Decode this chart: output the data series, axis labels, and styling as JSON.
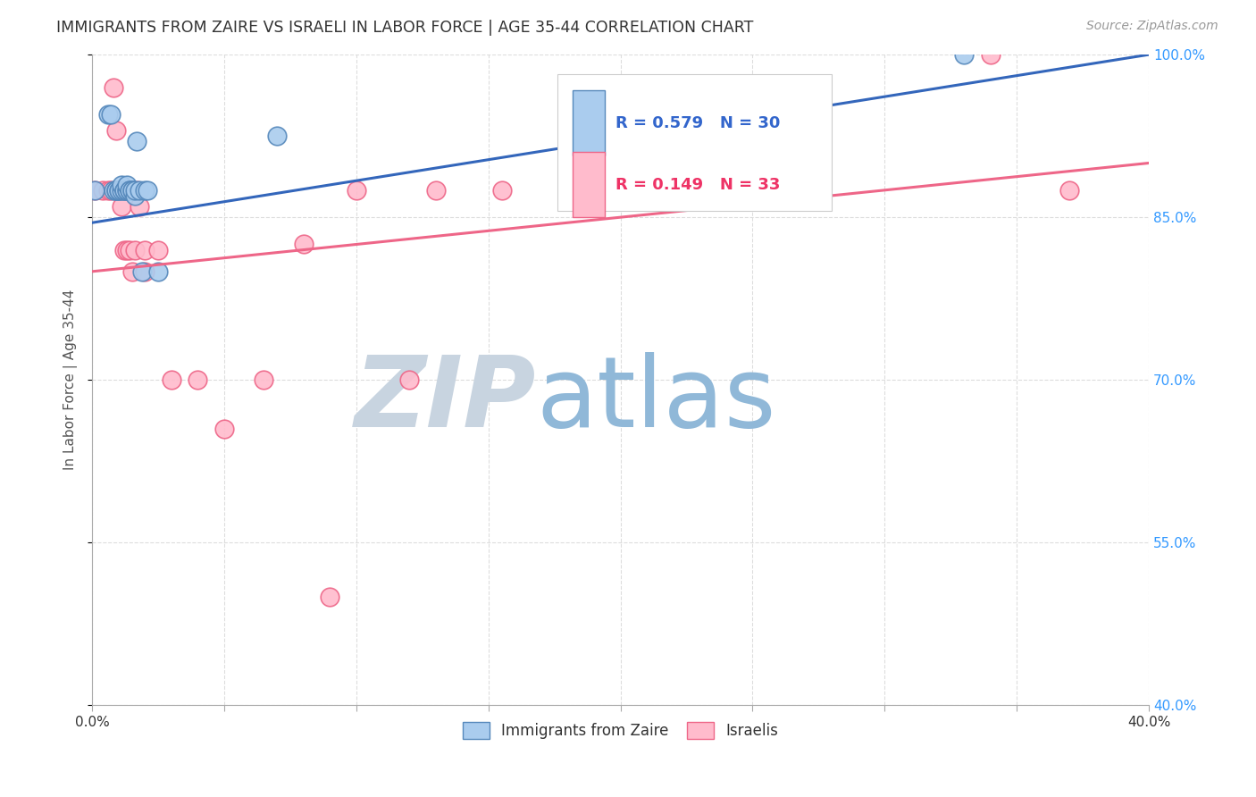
{
  "title": "IMMIGRANTS FROM ZAIRE VS ISRAELI IN LABOR FORCE | AGE 35-44 CORRELATION CHART",
  "source": "Source: ZipAtlas.com",
  "ylabel": "In Labor Force | Age 35-44",
  "xmin": 0.0,
  "xmax": 0.4,
  "ymin": 0.4,
  "ymax": 1.0,
  "xticks": [
    0.0,
    0.05,
    0.1,
    0.15,
    0.2,
    0.25,
    0.3,
    0.35,
    0.4
  ],
  "xtick_labels": [
    "0.0%",
    "",
    "",
    "",
    "",
    "",
    "",
    "",
    "40.0%"
  ],
  "yticks": [
    0.4,
    0.55,
    0.7,
    0.85,
    1.0
  ],
  "blue_R": 0.579,
  "blue_N": 30,
  "pink_R": 0.149,
  "pink_N": 33,
  "blue_scatter_x": [
    0.001,
    0.006,
    0.007,
    0.008,
    0.009,
    0.009,
    0.01,
    0.01,
    0.011,
    0.011,
    0.012,
    0.012,
    0.013,
    0.013,
    0.013,
    0.014,
    0.014,
    0.015,
    0.015,
    0.016,
    0.016,
    0.017,
    0.018,
    0.019,
    0.02,
    0.021,
    0.025,
    0.07,
    0.25,
    0.33
  ],
  "blue_scatter_y": [
    0.875,
    0.945,
    0.945,
    0.875,
    0.875,
    0.875,
    0.875,
    0.875,
    0.875,
    0.88,
    0.875,
    0.875,
    0.875,
    0.875,
    0.88,
    0.875,
    0.875,
    0.875,
    0.875,
    0.87,
    0.875,
    0.92,
    0.875,
    0.8,
    0.875,
    0.875,
    0.8,
    0.925,
    0.875,
    1.0
  ],
  "pink_scatter_x": [
    0.001,
    0.004,
    0.006,
    0.007,
    0.008,
    0.009,
    0.009,
    0.01,
    0.01,
    0.011,
    0.012,
    0.013,
    0.013,
    0.014,
    0.015,
    0.016,
    0.017,
    0.018,
    0.02,
    0.02,
    0.025,
    0.03,
    0.04,
    0.05,
    0.065,
    0.08,
    0.09,
    0.1,
    0.12,
    0.13,
    0.155,
    0.34,
    0.37
  ],
  "pink_scatter_y": [
    0.875,
    0.875,
    0.875,
    0.875,
    0.97,
    0.93,
    0.875,
    0.875,
    0.875,
    0.86,
    0.82,
    0.82,
    0.875,
    0.82,
    0.8,
    0.82,
    0.875,
    0.86,
    0.8,
    0.82,
    0.82,
    0.7,
    0.7,
    0.655,
    0.7,
    0.825,
    0.5,
    0.875,
    0.7,
    0.875,
    0.875,
    1.0,
    0.875
  ],
  "blue_line_x0": 0.0,
  "blue_line_x1": 0.4,
  "blue_line_y0": 0.845,
  "blue_line_y1": 1.0,
  "pink_line_x0": 0.0,
  "pink_line_x1": 0.4,
  "pink_line_y0": 0.8,
  "pink_line_y1": 0.9,
  "grid_color": "#dddddd",
  "blue_scatter_face": "#aaccee",
  "blue_scatter_edge": "#5588bb",
  "pink_scatter_face": "#ffbbcc",
  "pink_scatter_edge": "#ee6688",
  "blue_line_color": "#3366bb",
  "pink_line_color": "#ee6688",
  "watermark_zip_color": "#c8d4e0",
  "watermark_atlas_color": "#90b8d8",
  "title_color": "#333333",
  "source_color": "#999999",
  "axis_label_color": "#555555",
  "right_tick_color": "#3399ff",
  "bottom_tick_color": "#333333"
}
